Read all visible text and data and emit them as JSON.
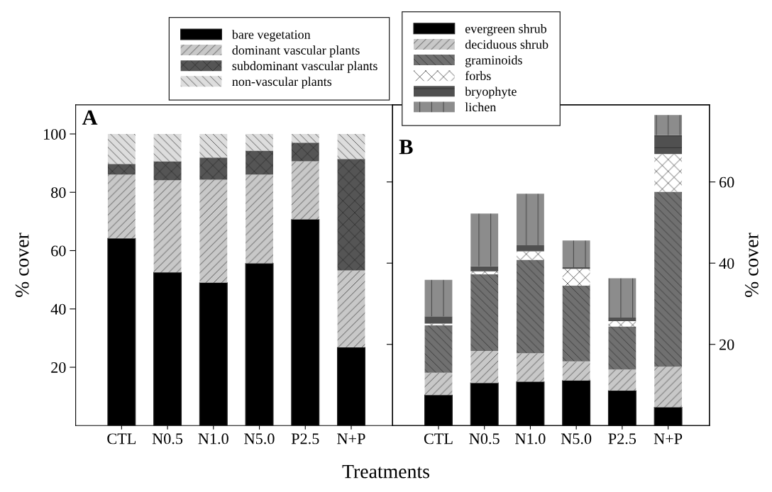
{
  "chart_data": [
    {
      "type": "bar",
      "title": "A",
      "xlabel": "Treatments",
      "ylabel": "% cover",
      "stacked": true,
      "legend": "top right",
      "grid": false,
      "categories": [
        "CTL",
        "N0.5",
        "N1.0",
        "N5.0",
        "P2.5",
        "N+P"
      ],
      "ylim": [
        0,
        110
      ],
      "yticks": [
        20,
        40,
        60,
        80,
        100
      ],
      "series": [
        {
          "name": "bare vegetation",
          "color": "#000000",
          "values": [
            64.2,
            52.5,
            49.0,
            55.6,
            70.7,
            26.8
          ]
        },
        {
          "name": "dominant vascular plants",
          "color": "#c8c8c8",
          "values": [
            21.9,
            31.6,
            35.3,
            30.5,
            19.9,
            26.4
          ]
        },
        {
          "name": "subdominant vascular plants",
          "color": "#555555",
          "values": [
            3.6,
            6.5,
            7.6,
            8.2,
            6.4,
            38.2
          ]
        },
        {
          "name": "non-vascular plants",
          "color": "#dddddd",
          "values": [
            10.3,
            9.4,
            8.1,
            5.7,
            3.0,
            8.6
          ]
        }
      ]
    },
    {
      "type": "bar",
      "title": "B",
      "y2label": "% cover",
      "stacked": true,
      "legend": "top left",
      "grid": false,
      "categories": [
        "CTL",
        "N0.5",
        "N1.0",
        "N5.0",
        "P2.5",
        "N+P"
      ],
      "y2lim": [
        0,
        79
      ],
      "y2ticks": [
        20,
        40,
        60
      ],
      "series": [
        {
          "name": "evergreen shrub",
          "color": "#000000",
          "axis": "y2",
          "values": [
            7.5,
            10.5,
            10.8,
            11.1,
            8.6,
            4.5
          ]
        },
        {
          "name": "deciduous shrub",
          "color": "#c8c8c8",
          "axis": "y2",
          "values": [
            5.5,
            7.9,
            7.0,
            4.7,
            5.2,
            10.0
          ]
        },
        {
          "name": "graminoids",
          "color": "#707070",
          "axis": "y2",
          "values": [
            11.7,
            18.9,
            23.0,
            18.7,
            10.6,
            43.1
          ]
        },
        {
          "name": "forbs",
          "color": "#ffffff",
          "axis": "y2",
          "values": [
            0.4,
            0.7,
            2.1,
            4.1,
            1.3,
            9.3
          ]
        },
        {
          "name": "bryophyte",
          "color": "#505050",
          "axis": "y2",
          "values": [
            1.8,
            1.2,
            1.5,
            0.4,
            0.9,
            4.6
          ]
        },
        {
          "name": "lichen",
          "color": "#8c8c8c",
          "axis": "y2",
          "values": [
            9.0,
            13.0,
            12.7,
            6.6,
            9.7,
            5.0
          ]
        }
      ]
    }
  ]
}
